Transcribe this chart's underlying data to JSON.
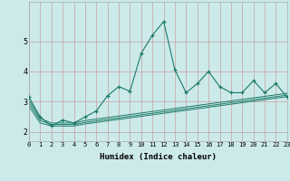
{
  "x": [
    0,
    1,
    2,
    3,
    4,
    5,
    6,
    7,
    8,
    9,
    10,
    11,
    12,
    13,
    14,
    15,
    16,
    17,
    18,
    19,
    20,
    21,
    22,
    23
  ],
  "y_main": [
    3.15,
    2.5,
    2.2,
    2.4,
    2.3,
    2.5,
    2.7,
    3.2,
    3.5,
    3.35,
    4.6,
    5.2,
    5.65,
    4.05,
    3.3,
    3.6,
    4.0,
    3.5,
    3.3,
    3.3,
    3.7,
    3.3,
    3.6,
    3.15
  ],
  "y_line1": [
    3.05,
    2.45,
    2.3,
    2.3,
    2.3,
    2.38,
    2.43,
    2.48,
    2.53,
    2.58,
    2.63,
    2.68,
    2.73,
    2.78,
    2.83,
    2.88,
    2.93,
    2.98,
    3.03,
    3.08,
    3.13,
    3.18,
    3.23,
    3.28
  ],
  "y_line2": [
    2.95,
    2.38,
    2.25,
    2.25,
    2.25,
    2.32,
    2.37,
    2.42,
    2.47,
    2.52,
    2.57,
    2.62,
    2.67,
    2.72,
    2.77,
    2.82,
    2.87,
    2.92,
    2.97,
    3.02,
    3.07,
    3.12,
    3.17,
    3.22
  ],
  "y_line3": [
    2.85,
    2.3,
    2.2,
    2.2,
    2.2,
    2.27,
    2.32,
    2.37,
    2.42,
    2.47,
    2.52,
    2.57,
    2.62,
    2.67,
    2.72,
    2.77,
    2.82,
    2.87,
    2.92,
    2.97,
    3.02,
    3.07,
    3.12,
    3.17
  ],
  "line_color": "#1a7a6a",
  "bg_color": "#cceaea",
  "grid_color_v": "#c8a0a0",
  "grid_color_h": "#c8a0a0",
  "xlabel": "Humidex (Indice chaleur)",
  "ylim": [
    1.7,
    6.3
  ],
  "xlim": [
    0,
    23
  ],
  "yticks": [
    2,
    3,
    4,
    5
  ],
  "xticks": [
    0,
    1,
    2,
    3,
    4,
    5,
    6,
    7,
    8,
    9,
    10,
    11,
    12,
    13,
    14,
    15,
    16,
    17,
    18,
    19,
    20,
    21,
    22,
    23
  ],
  "marker": "+"
}
